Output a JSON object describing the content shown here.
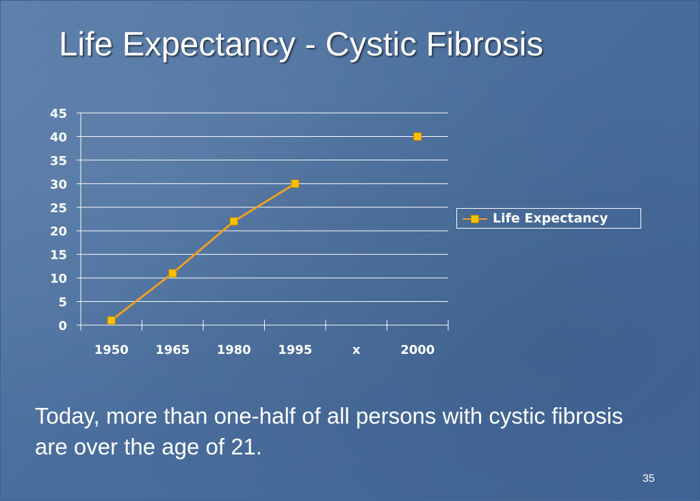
{
  "slide": {
    "title": "Life Expectancy - Cystic Fibrosis",
    "caption": "Today, more than one-half of all persons with cystic fibrosis are over the age of 21.",
    "page_number": "35"
  },
  "chart_data": {
    "type": "line",
    "categories": [
      "1950",
      "1965",
      "1980",
      "1995",
      "x",
      "2000"
    ],
    "series": [
      {
        "name": "Life Expectancy",
        "values": [
          1,
          11,
          22,
          30,
          null,
          40
        ],
        "color": "#ffc000",
        "line_color": "#f0a020"
      }
    ],
    "ylim": [
      0,
      45
    ],
    "yticks": [
      0,
      5,
      10,
      15,
      20,
      25,
      30,
      35,
      40,
      45
    ],
    "grid": true,
    "legend_position": "right"
  }
}
